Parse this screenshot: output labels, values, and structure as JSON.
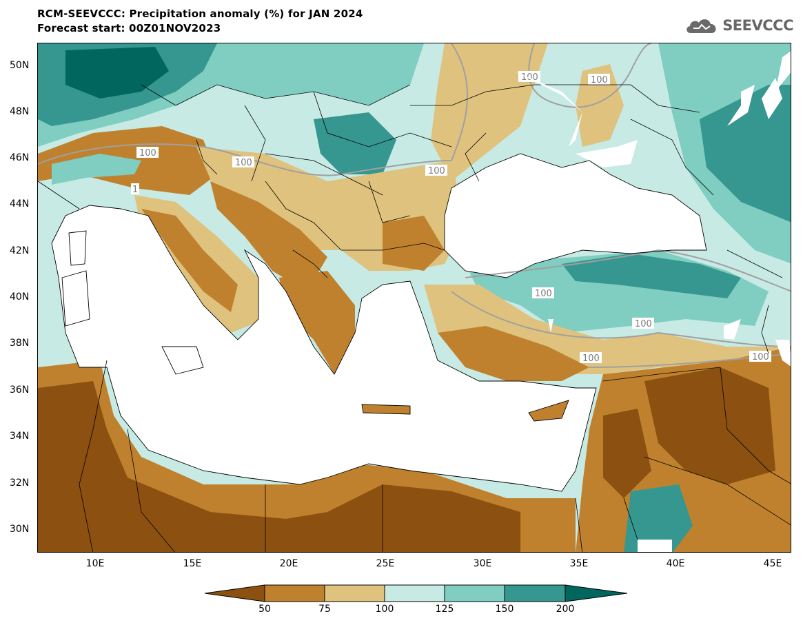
{
  "header": {
    "title": "RCM-SEEVCCC: Precipitation anomaly (%) for JAN 2024",
    "subtitle": "Forecast start: 00Z01NOV2023"
  },
  "logo": {
    "text": "SEEVCCC",
    "icon": "cloud-icon"
  },
  "map": {
    "lat_labels": [
      "50N",
      "48N",
      "46N",
      "44N",
      "42N",
      "40N",
      "38N",
      "36N",
      "34N",
      "32N",
      "30N"
    ],
    "lon_labels": [
      "10E",
      "15E",
      "20E",
      "25E",
      "30E",
      "35E",
      "40E",
      "45E"
    ],
    "contour_labels": [
      "100",
      "100",
      "100",
      "100",
      "100",
      "100",
      "100",
      "100",
      "1",
      "100"
    ],
    "colors": {
      "below_50": "#8c5010",
      "50_75": "#bf812d",
      "75_100": "#dfc27d",
      "100_125": "#c7eae5",
      "125_150": "#80cdc1",
      "150_200": "#35978f",
      "above_200": "#01665e",
      "sea": "#ffffff",
      "contour": "#a0a0a0"
    }
  },
  "colorbar": {
    "ticks": [
      "50",
      "75",
      "100",
      "125",
      "150",
      "200"
    ],
    "colors": [
      "#8c5010",
      "#bf812d",
      "#dfc27d",
      "#c7eae5",
      "#80cdc1",
      "#35978f",
      "#01665e"
    ]
  }
}
